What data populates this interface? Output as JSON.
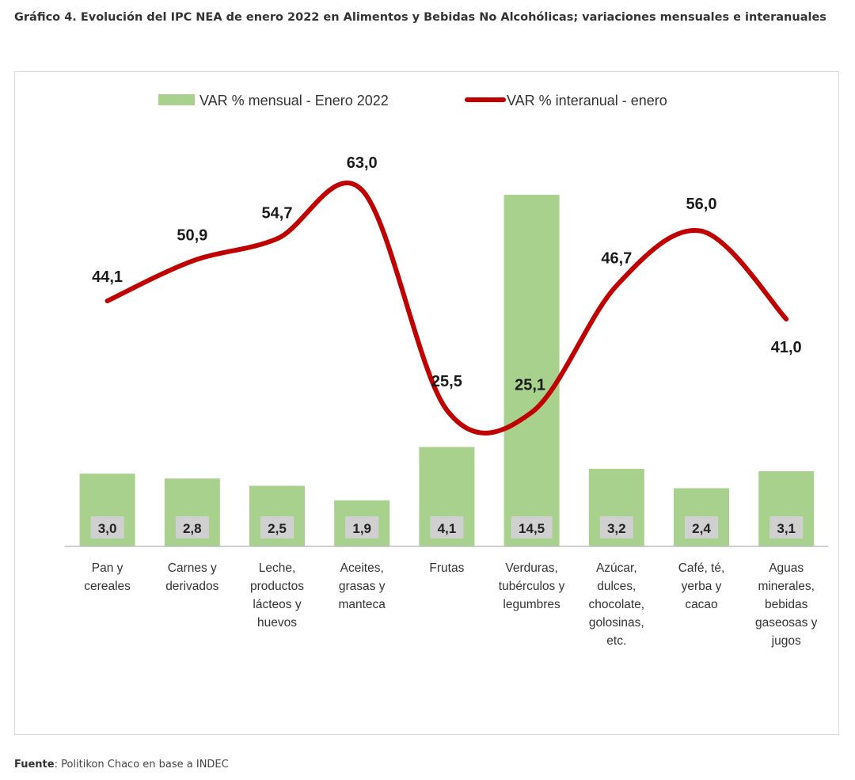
{
  "caption": {
    "title": "Gráfico 4. Evolución del IPC NEA de enero 2022 en Alimentos y Bebidas No Alcohólicas; variaciones mensuales e interanuales"
  },
  "source": {
    "label": "Fuente",
    "text": ": Politikon Chaco en base a INDEC"
  },
  "chart_data": {
    "type": "bar",
    "categories": [
      [
        "Pan y",
        "cereales"
      ],
      [
        "Carnes y",
        "derivados"
      ],
      [
        "Leche,",
        "productos",
        "lácteos y",
        "huevos"
      ],
      [
        "Aceites,",
        "grasas y",
        "manteca"
      ],
      [
        "Frutas"
      ],
      [
        "Verduras,",
        "tubérculos y",
        "legumbres"
      ],
      [
        "Azúcar,",
        "dulces,",
        "chocolate,",
        "golosinas,",
        "etc."
      ],
      [
        "Café, té,",
        "yerba y",
        "cacao"
      ],
      [
        "Aguas",
        "minerales,",
        "bebidas",
        "gaseosas y",
        "jugos"
      ]
    ],
    "series": [
      {
        "name": "VAR % mensual - Enero 2022",
        "type": "bar",
        "color": "#a9d18e",
        "values": [
          3.0,
          2.8,
          2.5,
          1.9,
          4.1,
          14.5,
          3.2,
          2.4,
          3.1
        ],
        "labels": [
          "3,0",
          "2,8",
          "2,5",
          "1,9",
          "4,1",
          "14,5",
          "3,2",
          "2,4",
          "3,1"
        ]
      },
      {
        "name": "VAR % interanual - enero",
        "type": "line",
        "smooth": true,
        "color": "#c00000",
        "values": [
          44.1,
          50.9,
          54.7,
          63.0,
          25.5,
          25.1,
          46.7,
          56.0,
          41.0
        ],
        "labels": [
          "44,1",
          "50,9",
          "54,7",
          "63,0",
          "25,5",
          "25,1",
          "46,7",
          "56,0",
          "41,0"
        ]
      }
    ],
    "legend": "top-center",
    "grid": false,
    "title": "",
    "xlabel": "",
    "ylabel": ""
  }
}
